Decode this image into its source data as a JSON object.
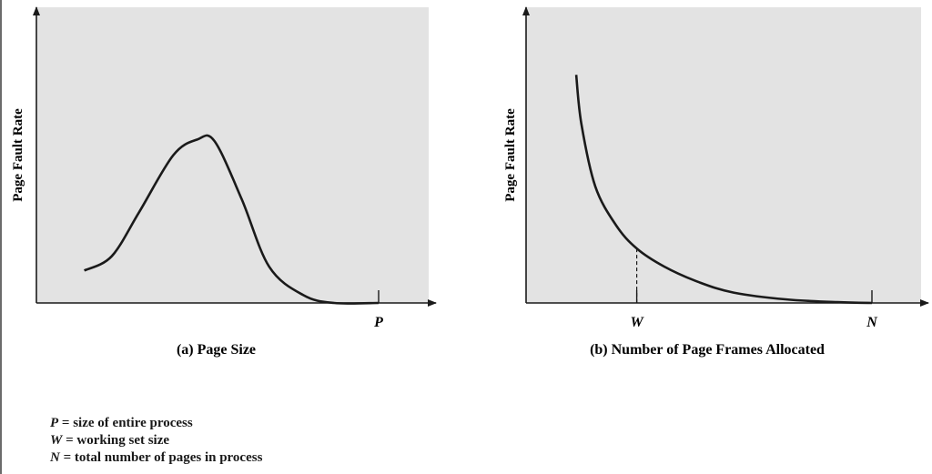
{
  "chart_data": [
    {
      "type": "line",
      "ylabel": "Page Fault Rate",
      "xlabel": "",
      "caption": "(a) Page Size",
      "x_ticks": [
        {
          "label": "P",
          "x": 1.0
        }
      ],
      "xlim": [
        0,
        1.0
      ],
      "ylim": [
        0,
        1.0
      ],
      "grid": false,
      "background": "#e3e3e3",
      "series": [
        {
          "values": [
            {
              "x": 0.14,
              "y": 0.125
            },
            {
              "x": 0.22,
              "y": 0.18
            },
            {
              "x": 0.3,
              "y": 0.35
            },
            {
              "x": 0.4,
              "y": 0.57
            },
            {
              "x": 0.47,
              "y": 0.63
            },
            {
              "x": 0.52,
              "y": 0.625
            },
            {
              "x": 0.6,
              "y": 0.4
            },
            {
              "x": 0.68,
              "y": 0.14
            },
            {
              "x": 0.78,
              "y": 0.03
            },
            {
              "x": 0.87,
              "y": 0.0
            },
            {
              "x": 1.0,
              "y": 0.0
            }
          ]
        }
      ]
    },
    {
      "type": "line",
      "ylabel": "Page Fault Rate",
      "xlabel": "",
      "caption": "(b) Number of Page Frames Allocated",
      "x_ticks": [
        {
          "label": "W",
          "x": 0.32
        },
        {
          "label": "N",
          "x": 1.0
        }
      ],
      "xlim": [
        0,
        1.0
      ],
      "ylim": [
        0,
        1.0
      ],
      "grid": false,
      "background": "#e3e3e3",
      "annotations": [
        {
          "type": "dashed-vline",
          "x": 0.32
        }
      ],
      "series": [
        {
          "values": [
            {
              "x": 0.145,
              "y": 0.88
            },
            {
              "x": 0.16,
              "y": 0.69
            },
            {
              "x": 0.2,
              "y": 0.45
            },
            {
              "x": 0.26,
              "y": 0.3
            },
            {
              "x": 0.32,
              "y": 0.21
            },
            {
              "x": 0.4,
              "y": 0.14
            },
            {
              "x": 0.5,
              "y": 0.08
            },
            {
              "x": 0.6,
              "y": 0.04
            },
            {
              "x": 0.75,
              "y": 0.014
            },
            {
              "x": 0.9,
              "y": 0.003
            },
            {
              "x": 1.0,
              "y": 0.0
            }
          ]
        }
      ]
    }
  ],
  "legend": [
    {
      "symbol": "P",
      "text": " = size of entire process"
    },
    {
      "symbol": "W",
      "text": " = working set size"
    },
    {
      "symbol": "N",
      "text": " = total number of pages in process"
    }
  ]
}
